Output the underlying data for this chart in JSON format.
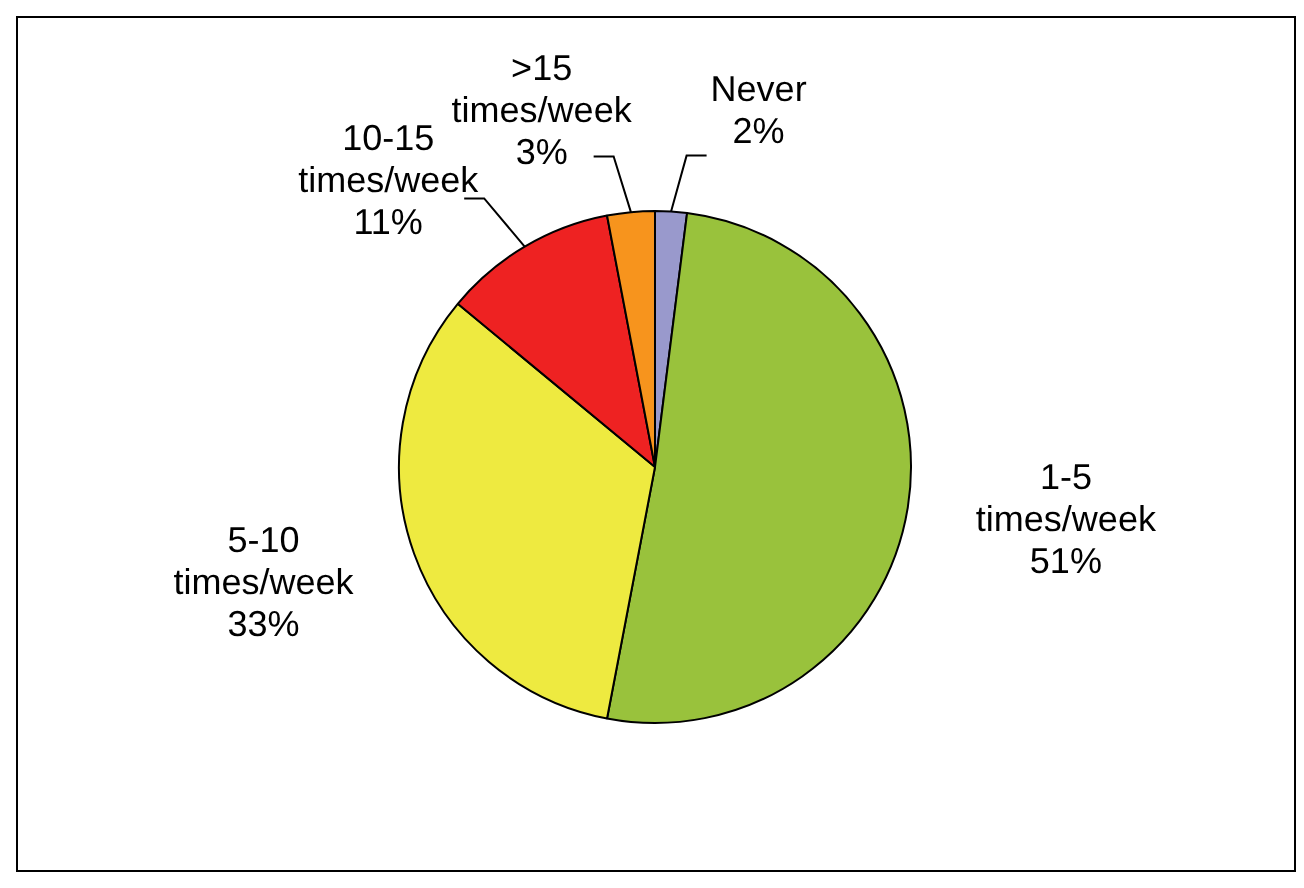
{
  "chart_data": {
    "type": "pie",
    "categories": [
      "Never",
      "1-5 times/week",
      "5-10 times/week",
      "10-15 times/week",
      ">15 times/week"
    ],
    "values": [
      2,
      51,
      33,
      11,
      3
    ],
    "value_labels": [
      "2%",
      "51%",
      "33%",
      "11%",
      "3%"
    ],
    "colors": [
      "#9999cc",
      "#99c23c",
      "#eeea40",
      "#ee2222",
      "#f7941d"
    ],
    "legend": false
  }
}
